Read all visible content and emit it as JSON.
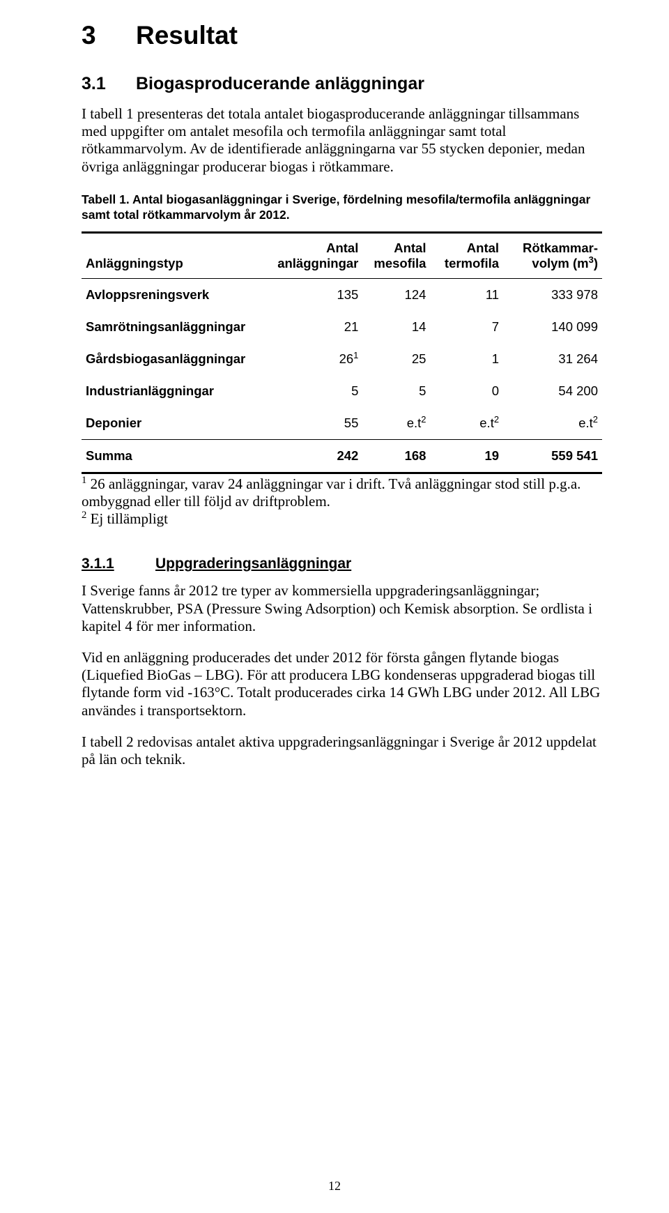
{
  "headings": {
    "h1_num": "3",
    "h1_title": "Resultat",
    "h2_num": "3.1",
    "h2_title": "Biogasproducerande anläggningar",
    "h3_num": "3.1.1",
    "h3_title": "Uppgraderingsanläggningar"
  },
  "paragraphs": {
    "p1": "I tabell 1 presenteras det totala antalet biogasproducerande anläggningar tillsammans med uppgifter om antalet mesofila och termofila anläggningar samt total rötkammarvolym. Av de identifierade anläggningarna var 55 stycken deponier, medan övriga anläggningar producerar biogas i rötkammare.",
    "p2": "I Sverige fanns år 2012 tre typer av kommersiella uppgraderingsanläggningar; Vattenskrubber, PSA (Pressure Swing Adsorption) och Kemisk absorption. Se ordlista i kapitel 4 för mer information.",
    "p3": "Vid en anläggning producerades det under 2012 för första gången flytande biogas (Liquefied BioGas – LBG). För att producera LBG kondenseras uppgraderad biogas till flytande form vid -163°C. Totalt producerades cirka 14 GWh LBG under 2012. All LBG användes i transportsektorn.",
    "p4": "I tabell 2 redovisas antalet aktiva uppgraderingsanläggningar i Sverige år 2012 uppdelat på län och teknik."
  },
  "table1": {
    "caption": "Tabell 1. Antal biogasanläggningar i Sverige, fördelning mesofila/termofila anläggningar samt total rötkammarvolym år 2012.",
    "headers": {
      "type": "Anläggningstyp",
      "n1": "Antal",
      "n2": "anläggningar",
      "meso1": "Antal",
      "meso2": "mesofila",
      "termo1": "Antal",
      "termo2": "termofila",
      "vol1": "Rötkammar-",
      "vol2_a": "volym (m",
      "vol2_b": ")"
    },
    "rows": [
      {
        "type": "Avloppsreningsverk",
        "n": "135",
        "sup_n": "",
        "meso": "124",
        "termo": "11",
        "vol": "333 978"
      },
      {
        "type": "Samrötningsanläggningar",
        "n": "21",
        "sup_n": "",
        "meso": "14",
        "termo": "7",
        "vol": "140 099"
      },
      {
        "type": "Gårdsbiogasanläggningar",
        "n": "26",
        "sup_n": "1",
        "meso": "25",
        "termo": "1",
        "vol": "31 264"
      },
      {
        "type": "Industrianläggningar",
        "n": "5",
        "sup_n": "",
        "meso": "5",
        "termo": "0",
        "vol": "54 200"
      }
    ],
    "deponier": {
      "type": "Deponier",
      "n": "55",
      "et": "e.t",
      "sup": "2"
    },
    "sum": {
      "label": "Summa",
      "n": "242",
      "meso": "168",
      "termo": "19",
      "vol": "559 541"
    }
  },
  "footnotes": {
    "f1_sup": "1",
    "f1_a": " 26 anläggningar, varav 24 anläggningar var i drift. Två anläggningar stod still p.g.a. ombyggnad eller till följd av driftproblem.",
    "f2_sup": "2",
    "f2": " Ej tillämpligt"
  },
  "page_number": "12"
}
